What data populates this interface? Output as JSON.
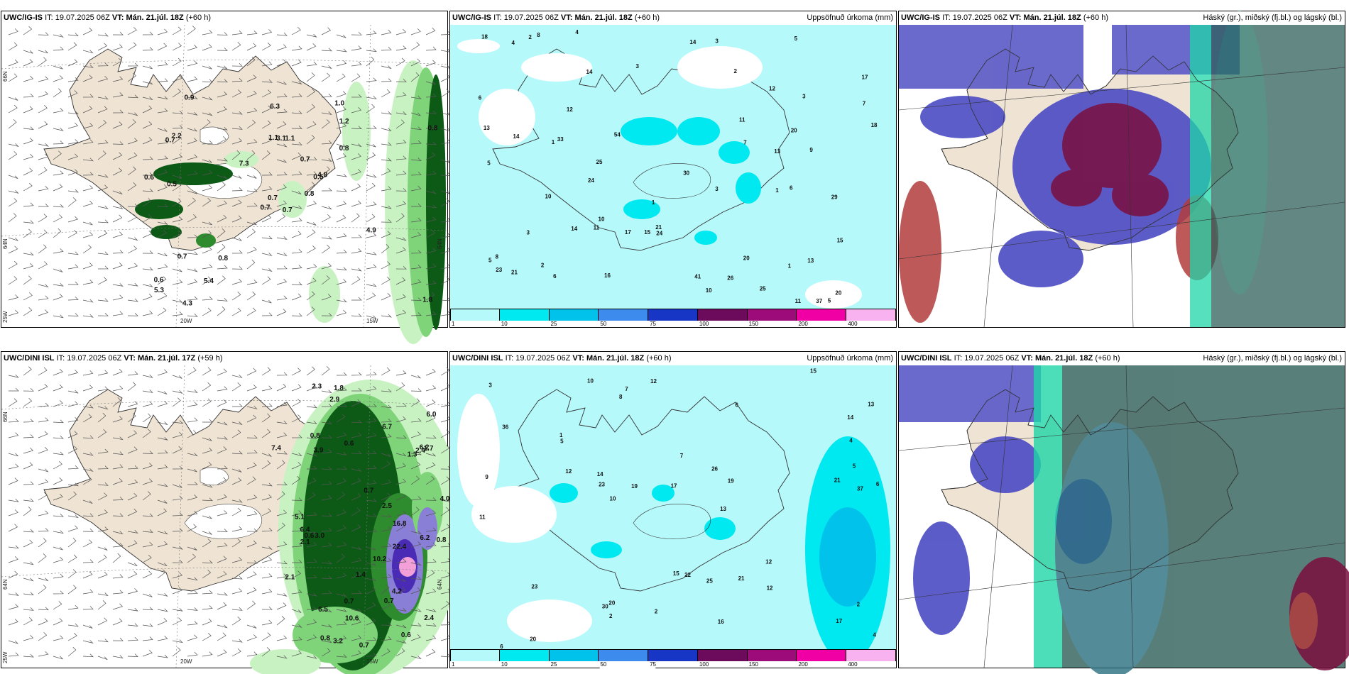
{
  "panels": [
    {
      "id": "p1",
      "model": "UWC/IG-IS",
      "it_label": "IT:",
      "it_value": "19.07.2025 06Z",
      "vt_label": "VT:",
      "vt_value": "Mán. 21.júl. 18Z",
      "lead": "(+60 h)",
      "right_title": "",
      "type": "wind_precip",
      "axis_labels": {
        "lat_top": "66N",
        "lat_mid": "64N",
        "lat_mid_right": "64N",
        "lat_bottom": "25W",
        "lon_a": "20W",
        "lon_b": "15W"
      },
      "values": [
        "0.7",
        "0.7",
        "0.7",
        "0.6",
        "0.6",
        "0.8",
        "1.0",
        "1.1",
        "1.2",
        "0.8",
        "0.9",
        "1.8",
        "0.5",
        "0.8",
        "0.7",
        "0.8",
        "4.3",
        "1.1",
        "0.7",
        "0.7",
        "7.3",
        "5.3",
        "5.4",
        "3.1",
        "4.8",
        "4.9",
        "2.2",
        "6.3",
        "0.6"
      ]
    },
    {
      "id": "p2",
      "model": "UWC/IG-IS",
      "it_label": "IT:",
      "it_value": "19.07.2025 06Z",
      "vt_label": "VT:",
      "vt_value": "Mán. 21.júl. 18Z",
      "lead": "(+60 h)",
      "right_title": "Uppsöfnuð úrkoma (mm)",
      "type": "accum",
      "values": [
        "1",
        "1",
        "2",
        "6",
        "5",
        "14",
        "15",
        "24",
        "11",
        "13",
        "9",
        "14",
        "18",
        "11",
        "25",
        "20",
        "30",
        "18",
        "17",
        "54",
        "37",
        "33",
        "26",
        "14",
        "13",
        "7",
        "41",
        "8",
        "3",
        "5",
        "10",
        "17",
        "21",
        "15",
        "12",
        "13",
        "14",
        "8",
        "10",
        "16",
        "5",
        "20",
        "29",
        "25",
        "24",
        "23",
        "21",
        "12",
        "4",
        "2",
        "10",
        "20",
        "3",
        "5",
        "7",
        "11",
        "6",
        "4",
        "3",
        "2",
        "3",
        "3",
        "6",
        "1",
        "1"
      ],
      "colorbar": {
        "ticks": [
          "1",
          "10",
          "25",
          "50",
          "75",
          "100",
          "150",
          "200",
          "400"
        ],
        "colors": [
          "#b6f9fb",
          "#00e8f0",
          "#00c2ea",
          "#3e8bee",
          "#1836c6",
          "#6c0b5c",
          "#9d0a79",
          "#f000a4",
          "#f7b2ef"
        ]
      }
    },
    {
      "id": "p3",
      "model": "UWC/IG-IS",
      "it_label": "IT:",
      "it_value": "19.07.2025 06Z",
      "vt_label": "VT:",
      "vt_value": "Mán. 21.júl. 18Z",
      "lead": "(+60 h)",
      "right_title": "Háský (gr.), miðský (fj.bl.) og lágský (bl.)",
      "type": "cloud"
    },
    {
      "id": "p4",
      "model": "UWC/DINI ISL",
      "it_label": "IT:",
      "it_value": "19.07.2025 06Z",
      "vt_label": "VT:",
      "vt_value": "Mán. 21.júl. 17Z",
      "lead": "(+59 h)",
      "right_title": "",
      "type": "wind_precip",
      "axis_labels": {
        "lat_top": "66N",
        "lat_mid": "64N",
        "lat_mid_right": "64N",
        "lat_bottom": "25W",
        "lon_a": "20W",
        "lon_b": "15W"
      },
      "values": [
        "0.8",
        "0.7",
        "1.3",
        "0.6",
        "0.8",
        "0.8",
        "0.7",
        "2.4",
        "4.0",
        "2.5",
        "7.4",
        "2.3",
        "2.1",
        "6.2",
        "1.8",
        "6.4",
        "2.4",
        "4.2",
        "3.9",
        "3.0",
        "10.2",
        "6.7",
        "10.6",
        "3.2",
        "22.4",
        "16.8",
        "2.9",
        "0.6",
        "0.7",
        "6.2",
        "5.1",
        "6.0",
        "6.5",
        "2.1",
        "1.4",
        "1.7",
        "0.6",
        "0.7"
      ]
    },
    {
      "id": "p5",
      "model": "UWC/DINI ISL",
      "it_label": "IT:",
      "it_value": "19.07.2025 06Z",
      "vt_label": "VT:",
      "vt_value": "Mán. 21.júl. 18Z",
      "lead": "(+60 h)",
      "right_title": "Uppsöfnuð úrkoma (mm)",
      "type": "accum",
      "values": [
        "6",
        "2",
        "10",
        "12",
        "12",
        "19",
        "13",
        "17",
        "19",
        "22",
        "26",
        "37",
        "23",
        "20",
        "25",
        "30",
        "36",
        "21",
        "21",
        "23",
        "15",
        "14",
        "17",
        "12",
        "13",
        "16",
        "15",
        "20",
        "6",
        "4",
        "5",
        "2",
        "1",
        "7",
        "11",
        "14",
        "10",
        "9",
        "8",
        "3",
        "12",
        "5",
        "6",
        "7",
        "4",
        "2"
      ],
      "colorbar": {
        "ticks": [
          "1",
          "10",
          "25",
          "50",
          "75",
          "100",
          "150",
          "200",
          "400"
        ],
        "colors": [
          "#b6f9fb",
          "#00e8f0",
          "#00c2ea",
          "#3e8bee",
          "#1836c6",
          "#6c0b5c",
          "#9d0a79",
          "#f000a4",
          "#f7b2ef"
        ]
      }
    },
    {
      "id": "p6",
      "model": "UWC/DINI ISL",
      "it_label": "IT:",
      "it_value": "19.07.2025 06Z",
      "vt_label": "VT:",
      "vt_value": "Mán. 21.júl. 18Z",
      "lead": "(+60 h)",
      "right_title": "Háský (gr.), miðský (fj.bl.) og lágský (bl.)",
      "type": "cloud"
    }
  ]
}
